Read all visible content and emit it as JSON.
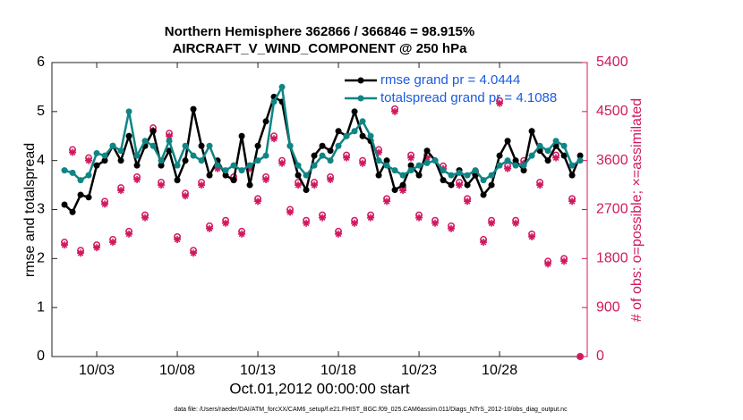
{
  "chart_data": {
    "type": "line",
    "title": "Northern Hemisphere 362866 / 366846 = 98.915%",
    "subtitle": "AIRCRAFT_V_WIND_COMPONENT @ 250 hPa",
    "x_label": "Oct.01,2012 00:00:00 start",
    "y_label": "rmse and totalspread",
    "y2_label": "# of obs: o=possible; ×=assimilated",
    "footer": "data file: /Users/raeder/DAI/ATM_forcXX/CAM6_setup/f.e21.FHIST_BGC.f09_025.CAM6assim.011/Diags_NTrS_2012-10/obs_diag_output.nc",
    "xlim": [
      -0.78,
      32.44
    ],
    "xticks": [
      {
        "value": 2,
        "label": "10/03"
      },
      {
        "value": 7,
        "label": "10/08"
      },
      {
        "value": 12,
        "label": "10/13"
      },
      {
        "value": 17,
        "label": "10/18"
      },
      {
        "value": 22,
        "label": "10/23"
      },
      {
        "value": 27,
        "label": "10/28"
      }
    ],
    "ylim": [
      0,
      6
    ],
    "yticks": [
      0,
      1,
      2,
      3,
      4,
      5,
      6
    ],
    "y2lim": [
      0,
      5400
    ],
    "y2ticks": [
      0,
      900,
      1800,
      2700,
      3600,
      4500,
      5400
    ],
    "y2color": "#d0185e",
    "legend": "upper right",
    "x": [
      0,
      0.5,
      1,
      1.5,
      2,
      2.5,
      3,
      3.5,
      4,
      4.5,
      5,
      5.5,
      6,
      6.5,
      7,
      7.5,
      8,
      8.5,
      9,
      9.5,
      10,
      10.5,
      11,
      11.5,
      12,
      12.5,
      13,
      13.5,
      14,
      14.5,
      15,
      15.5,
      16,
      16.5,
      17,
      17.5,
      18,
      18.5,
      19,
      19.5,
      20,
      20.5,
      21,
      21.5,
      22,
      22.5,
      23,
      23.5,
      24,
      24.5,
      25,
      25.5,
      26,
      26.5,
      27,
      27.5,
      28,
      28.5,
      29,
      29.5,
      30,
      30.5,
      31,
      31.5,
      32
    ],
    "series": [
      {
        "name": "rmse grand pr = 4.0444",
        "color": "#000000",
        "marker": "dot",
        "values": [
          3.1,
          2.95,
          3.3,
          3.25,
          3.9,
          4.0,
          4.3,
          4.0,
          4.5,
          3.9,
          4.3,
          4.6,
          3.9,
          4.2,
          3.6,
          4.0,
          5.05,
          4.3,
          3.7,
          4.0,
          3.7,
          3.6,
          4.5,
          3.5,
          4.3,
          4.8,
          5.3,
          5.2,
          4.3,
          3.7,
          3.4,
          4.1,
          4.3,
          4.2,
          4.6,
          4.5,
          5.0,
          4.5,
          4.4,
          3.7,
          4.0,
          3.4,
          3.5,
          3.9,
          3.7,
          4.2,
          4.0,
          3.6,
          3.5,
          3.8,
          3.5,
          3.7,
          3.3,
          3.5,
          4.1,
          4.4,
          4.0,
          3.8,
          4.6,
          4.2,
          4.0,
          4.3,
          4.1,
          3.7,
          4.1
        ]
      },
      {
        "name": "totalspread grand pr = 4.1088",
        "color": "#0f8585",
        "marker": "dot",
        "values": [
          3.8,
          3.75,
          3.6,
          3.7,
          4.15,
          4.1,
          4.3,
          4.2,
          5.0,
          4.1,
          4.4,
          4.3,
          4.0,
          4.4,
          3.9,
          4.3,
          4.1,
          4.0,
          4.3,
          3.9,
          3.8,
          3.9,
          3.8,
          3.9,
          4.0,
          4.1,
          5.2,
          5.5,
          4.3,
          3.9,
          3.7,
          3.9,
          4.1,
          4.0,
          4.3,
          4.5,
          4.6,
          4.8,
          4.5,
          4.0,
          3.9,
          3.8,
          3.7,
          3.8,
          3.9,
          3.95,
          4.0,
          3.8,
          3.7,
          3.75,
          3.7,
          3.8,
          3.6,
          3.7,
          3.9,
          4.0,
          3.9,
          3.9,
          4.1,
          4.3,
          4.2,
          4.4,
          4.3,
          3.9,
          4.0
        ]
      },
      {
        "color": "#d0185e",
        "marker": "o",
        "axis": "y2",
        "values": [
          2100,
          3800,
          1950,
          3650,
          2050,
          2850,
          2150,
          3100,
          2300,
          3300,
          2600,
          4200,
          3200,
          4100,
          2200,
          3000,
          1950,
          3200,
          2400,
          3500,
          2500,
          3300,
          2300,
          3500,
          2900,
          3300,
          4050,
          3600,
          2700,
          3200,
          2500,
          3200,
          2600,
          3300,
          2300,
          3700,
          2500,
          3600,
          2600,
          3800,
          2900,
          4550,
          3100,
          3700,
          2600,
          3700,
          2500,
          3500,
          2400,
          3200,
          2900,
          3400,
          2150,
          2500,
          4700,
          3500,
          2500,
          3600,
          2250,
          3200,
          1750,
          3700,
          1800,
          2900,
          0
        ]
      },
      {
        "color": "#d0185e",
        "marker": "*",
        "axis": "y2",
        "values": [
          2050,
          3750,
          1900,
          3600,
          2000,
          2800,
          2100,
          3050,
          2250,
          3250,
          2550,
          4150,
          3150,
          4050,
          2150,
          2950,
          1900,
          3150,
          2350,
          3450,
          2450,
          3250,
          2250,
          3450,
          2850,
          3250,
          4000,
          3550,
          2650,
          3150,
          2450,
          3150,
          2550,
          3250,
          2250,
          3650,
          2450,
          3550,
          2550,
          3750,
          2850,
          4500,
          3050,
          3650,
          2550,
          3650,
          2450,
          3450,
          2350,
          3150,
          2850,
          3350,
          2100,
          2450,
          4650,
          3450,
          2450,
          3550,
          2200,
          3150,
          1700,
          3650,
          1750,
          2850,
          0
        ]
      }
    ]
  }
}
